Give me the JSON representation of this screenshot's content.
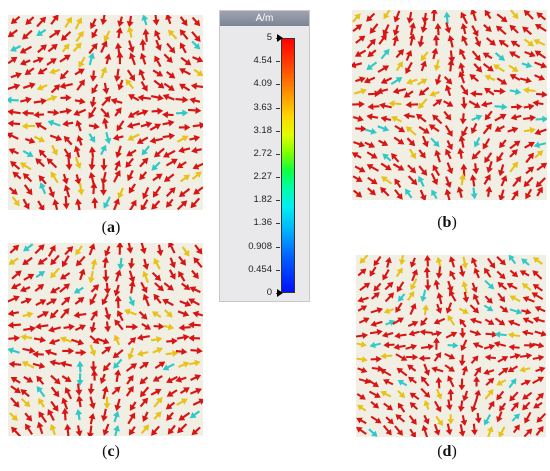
{
  "legend": {
    "unit": "A/m",
    "ticks": [
      "5",
      "4.54",
      "4.09",
      "3.63",
      "3.18",
      "2.72",
      "2.27",
      "1.82",
      "1.36",
      "0.908",
      "0.454",
      "0"
    ],
    "gradient_colors": [
      "#ff0000",
      "#ff8800",
      "#ffd200",
      "#80ff00",
      "#00ff9a",
      "#00f0f0",
      "#00b0ff",
      "#0010ff"
    ]
  },
  "panels": [
    {
      "id": "a",
      "pattern": "saddle-horizontal"
    },
    {
      "id": "b",
      "pattern": "saddle-vertical"
    },
    {
      "id": "c",
      "pattern": "saddle-horizontal"
    },
    {
      "id": "d",
      "pattern": "saddle-vertical"
    }
  ],
  "labels": {
    "a": {
      "open": "(",
      "letter": "a",
      "close": ")"
    },
    "b": {
      "open": "(",
      "letter": "b",
      "close": ")"
    },
    "c": {
      "open": "(",
      "letter": "c",
      "close": ")"
    },
    "d": {
      "open": "(",
      "letter": "d",
      "close": ")"
    }
  },
  "colors": {
    "panel_background": "#f1efe4",
    "arrow_dominant": "#d81414",
    "arrow_mid": "#e8c21a",
    "arrow_low": "#33c8c8"
  }
}
